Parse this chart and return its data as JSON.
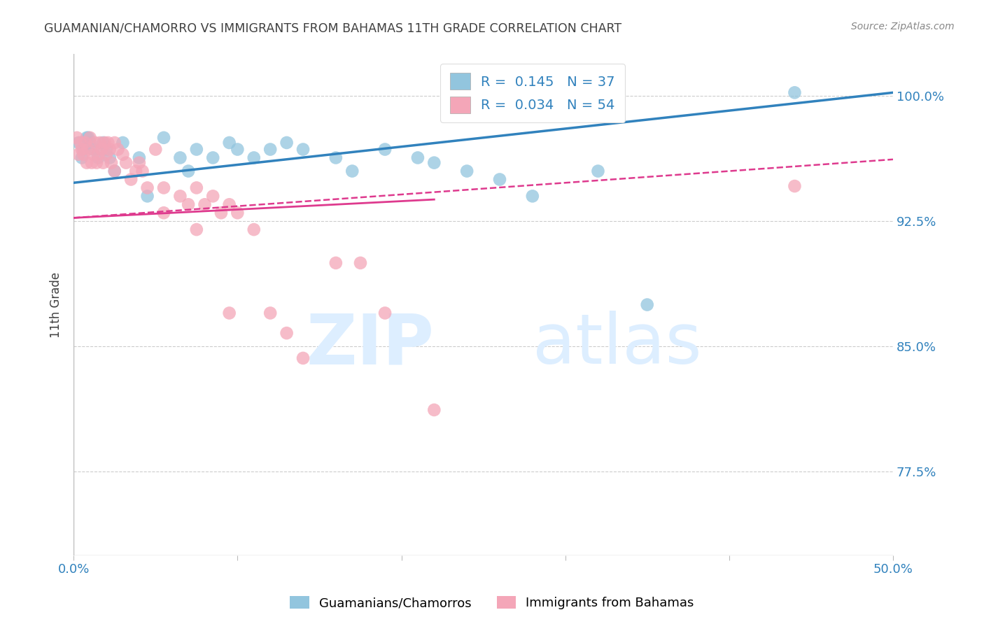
{
  "title": "GUAMANIAN/CHAMORRO VS IMMIGRANTS FROM BAHAMAS 11TH GRADE CORRELATION CHART",
  "source": "Source: ZipAtlas.com",
  "ylabel": "11th Grade",
  "y_tick_labels": [
    "77.5%",
    "85.0%",
    "92.5%",
    "100.0%"
  ],
  "y_tick_values": [
    0.775,
    0.85,
    0.925,
    1.0
  ],
  "x_min": 0.0,
  "x_max": 0.5,
  "y_min": 0.725,
  "y_max": 1.025,
  "legend_r1": "0.145",
  "legend_n1": "37",
  "legend_r2": "0.034",
  "legend_n2": "54",
  "blue_color": "#92c5de",
  "pink_color": "#f4a6b8",
  "line_blue": "#3182bd",
  "line_pink": "#de3a8e",
  "title_color": "#404040",
  "axis_label_color": "#3182bd",
  "watermark_color": "#ddeeff",
  "blue_scatter_x": [
    0.003,
    0.006,
    0.009,
    0.012,
    0.015,
    0.018,
    0.008,
    0.022,
    0.03,
    0.04,
    0.055,
    0.065,
    0.075,
    0.085,
    0.095,
    0.1,
    0.11,
    0.12,
    0.13,
    0.14,
    0.16,
    0.17,
    0.19,
    0.21,
    0.22,
    0.24,
    0.26,
    0.28,
    0.32,
    0.35,
    0.005,
    0.01,
    0.02,
    0.025,
    0.045,
    0.07,
    0.44
  ],
  "blue_scatter_y": [
    0.972,
    0.968,
    0.975,
    0.968,
    0.963,
    0.972,
    0.975,
    0.963,
    0.972,
    0.963,
    0.975,
    0.963,
    0.968,
    0.963,
    0.972,
    0.968,
    0.963,
    0.968,
    0.972,
    0.968,
    0.963,
    0.955,
    0.968,
    0.963,
    0.96,
    0.955,
    0.95,
    0.94,
    0.955,
    0.875,
    0.963,
    0.972,
    0.968,
    0.955,
    0.94,
    0.955,
    1.002
  ],
  "pink_scatter_x": [
    0.002,
    0.003,
    0.004,
    0.005,
    0.006,
    0.007,
    0.008,
    0.009,
    0.01,
    0.011,
    0.012,
    0.013,
    0.014,
    0.015,
    0.016,
    0.017,
    0.018,
    0.019,
    0.02,
    0.021,
    0.022,
    0.023,
    0.025,
    0.027,
    0.03,
    0.032,
    0.035,
    0.038,
    0.04,
    0.042,
    0.045,
    0.05,
    0.055,
    0.065,
    0.07,
    0.075,
    0.08,
    0.085,
    0.09,
    0.095,
    0.1,
    0.11,
    0.12,
    0.13,
    0.14,
    0.16,
    0.175,
    0.19,
    0.22,
    0.025,
    0.055,
    0.075,
    0.095,
    0.44
  ],
  "pink_scatter_y": [
    0.975,
    0.965,
    0.972,
    0.968,
    0.965,
    0.972,
    0.96,
    0.968,
    0.975,
    0.96,
    0.965,
    0.972,
    0.96,
    0.965,
    0.972,
    0.968,
    0.96,
    0.972,
    0.965,
    0.972,
    0.968,
    0.96,
    0.972,
    0.968,
    0.965,
    0.96,
    0.95,
    0.955,
    0.96,
    0.955,
    0.945,
    0.968,
    0.945,
    0.94,
    0.935,
    0.945,
    0.935,
    0.94,
    0.93,
    0.935,
    0.93,
    0.92,
    0.87,
    0.858,
    0.843,
    0.9,
    0.9,
    0.87,
    0.812,
    0.955,
    0.93,
    0.92,
    0.87,
    0.946
  ],
  "blue_line_x": [
    0.0,
    0.5
  ],
  "blue_line_y": [
    0.948,
    1.002
  ],
  "pink_line_x": [
    0.035,
    0.5
  ],
  "pink_line_y": [
    0.93,
    0.962
  ],
  "pink_dash_line_x": [
    0.035,
    0.5
  ],
  "pink_dash_line_y": [
    0.93,
    0.962
  ],
  "legend_label1": "Guamanians/Chamorros",
  "legend_label2": "Immigrants from Bahamas",
  "background_color": "#ffffff",
  "grid_color": "#cccccc"
}
